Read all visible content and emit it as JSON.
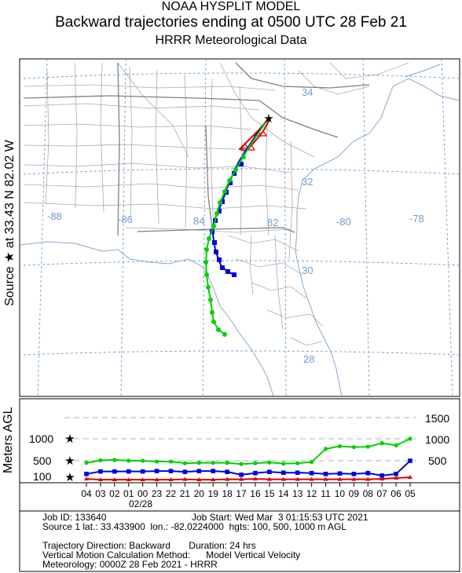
{
  "header": {
    "line1": "NOAA HYSPLIT MODEL",
    "line2": "Backward trajectories ending at 0500 UTC 28 Feb 21",
    "line3": "HRRR Meteorological Data"
  },
  "side_labels": {
    "source": "Source ★ at   33.43 N   82.02 W",
    "height": "Meters AGL"
  },
  "map": {
    "longitude_labels": [
      "-88",
      "-86",
      "84",
      "82",
      "-80",
      "-78"
    ],
    "latitude_labels": [
      "34",
      "32",
      "30",
      "28"
    ],
    "source_point": {
      "lat": 33.43,
      "lon": -82.02
    }
  },
  "colors": {
    "traj_100": "#e00000",
    "traj_500": "#0000e0",
    "traj_1000": "#00d000",
    "gridline": "#6f9ccf",
    "boundary": "#a9a9a9"
  },
  "chart_data": {
    "type": "line",
    "xlabel": "",
    "ylabel": "Meters AGL",
    "x_tick_labels": [
      "04",
      "03",
      "02",
      "01",
      "00",
      "23",
      "22",
      "21",
      "20",
      "19",
      "18",
      "17",
      "16",
      "15",
      "14",
      "13",
      "12",
      "11",
      "10",
      "09",
      "08",
      "07",
      "06",
      "05"
    ],
    "date_label": "02/28",
    "y_ref_lines": [
      500,
      1000,
      1500
    ],
    "y_tick_labels_left": [
      "1000",
      "500",
      "100"
    ],
    "y_tick_labels_right": [
      "1500",
      "1000",
      "500"
    ],
    "series": [
      {
        "name": "100",
        "color": "#e00000",
        "values": [
          60,
          40,
          40,
          40,
          40,
          40,
          40,
          50,
          40,
          40,
          50,
          50,
          60,
          50,
          50,
          50,
          50,
          50,
          50,
          50,
          50,
          60,
          80,
          100
        ]
      },
      {
        "name": "500",
        "color": "#0000e0",
        "values": [
          180,
          240,
          240,
          240,
          240,
          250,
          250,
          230,
          250,
          250,
          230,
          160,
          200,
          230,
          210,
          210,
          200,
          180,
          190,
          180,
          200,
          140,
          180,
          500
        ]
      },
      {
        "name": "1000",
        "color": "#00d000",
        "values": [
          450,
          510,
          520,
          500,
          500,
          480,
          480,
          440,
          450,
          450,
          450,
          420,
          440,
          460,
          430,
          440,
          470,
          770,
          830,
          810,
          820,
          900,
          850,
          1000
        ]
      }
    ]
  },
  "info": {
    "job_id": "Job ID: 133640",
    "job_start": "Job Start: Wed Mar  3 01:15:53 UTC 2021",
    "source": "Source 1 lat.: 33.433900  lon.: -82.0224000  hgts: 100, 500, 1000 m AGL",
    "direction": "Trajectory Direction: Backward       Duration: 24 hrs",
    "vertical": "Vertical Motion Calculation Method:      Model Vertical Velocity",
    "meteorology": "Meteorology: 0000Z 28 Feb 2021 - HRRR"
  }
}
